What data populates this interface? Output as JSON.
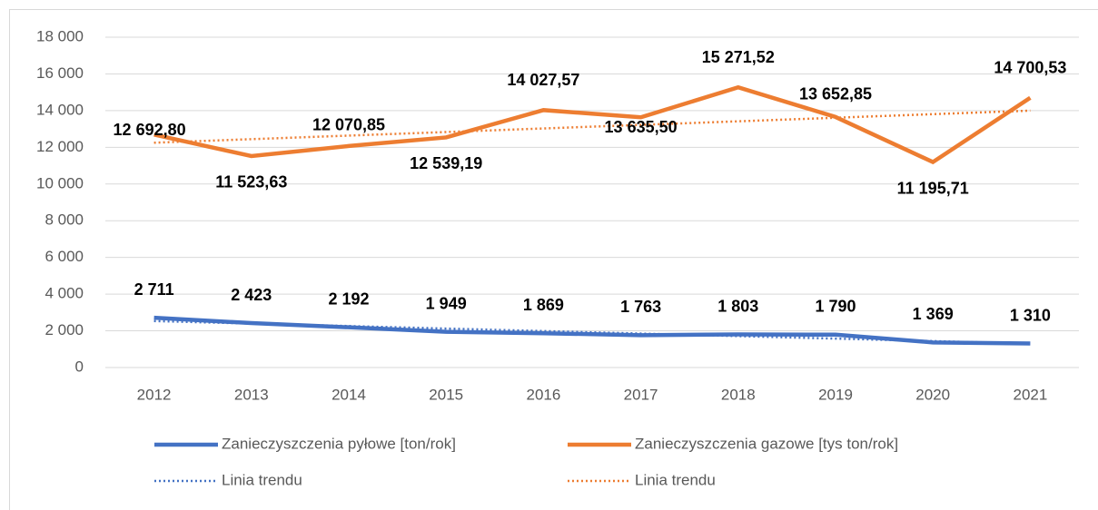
{
  "chart_data": {
    "type": "line",
    "categories": [
      "2012",
      "2013",
      "2014",
      "2015",
      "2016",
      "2017",
      "2018",
      "2019",
      "2020",
      "2021"
    ],
    "series": [
      {
        "name": "Zanieczyszczenia pyłowe [ton/rok]",
        "color": "#4472c4",
        "style": "solid",
        "values": [
          2711,
          2423,
          2192,
          1949,
          1869,
          1763,
          1803,
          1790,
          1369,
          1310
        ],
        "value_labels": [
          "2 711",
          "2 423",
          "2 192",
          "1 949",
          "1 869",
          "1 763",
          "1 803",
          "1 790",
          "1 369",
          "1 310"
        ]
      },
      {
        "name": "Zanieczyszczenia gazowe [tys ton/rok]",
        "color": "#ed7d31",
        "style": "solid",
        "values": [
          12692.8,
          11523.63,
          12070.85,
          12539.19,
          14027.57,
          13635.5,
          15271.52,
          13652.85,
          11195.71,
          14700.53
        ],
        "value_labels": [
          "12 692,80",
          "11 523,63",
          "12 070,85",
          "12 539,19",
          "14 027,57",
          "13 635,50",
          "15 271,52",
          "13 652,85",
          "11 195,71",
          "14 700,53"
        ]
      },
      {
        "name": "Linia trendu",
        "color": "#4472c4",
        "style": "dotted",
        "values": [
          2533,
          2396,
          2260,
          2123,
          1986,
          1850,
          1713,
          1576,
          1440,
          1303
        ]
      },
      {
        "name": "Linia trendu",
        "color": "#ed7d31",
        "style": "dotted",
        "values": [
          12250,
          12444,
          12639,
          12833,
          13028,
          13222,
          13417,
          13611,
          13806,
          14000
        ]
      }
    ],
    "ylim": [
      0,
      18000
    ],
    "yticks": [
      0,
      {
        "value": 2000,
        "label": "2 000"
      },
      {
        "value": 4000,
        "label": "4 000"
      },
      {
        "value": 6000,
        "label": "6 000"
      },
      {
        "value": 8000,
        "label": "8 000"
      },
      {
        "value": 10000,
        "label": "10 000"
      },
      {
        "value": 12000,
        "label": "12 000"
      },
      {
        "value": 14000,
        "label": "14 000"
      },
      {
        "value": 16000,
        "label": "16 000"
      },
      {
        "value": 18000,
        "label": "18 000"
      }
    ],
    "grid": true
  }
}
